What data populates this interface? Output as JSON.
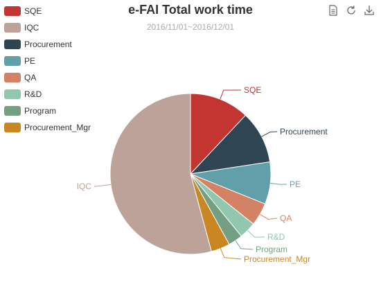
{
  "chart_data": {
    "type": "pie",
    "title": "e-FAI Total work time",
    "subtitle": "2016/11/01~2016/12/01",
    "legend_position": "top-left",
    "slices": [
      {
        "name": "SQE",
        "value": 12.0,
        "color": "#c23531"
      },
      {
        "name": "Procurement",
        "value": 10.6,
        "color": "#2f4554"
      },
      {
        "name": "PE",
        "value": 8.5,
        "color": "#61a0a8"
      },
      {
        "name": "QA",
        "value": 4.6,
        "color": "#d48265"
      },
      {
        "name": "R&D",
        "value": 3.4,
        "color": "#91c7ae"
      },
      {
        "name": "Program",
        "value": 2.9,
        "color": "#749f83"
      },
      {
        "name": "Procurement_Mgr",
        "value": 3.8,
        "color": "#ca8622"
      },
      {
        "name": "IQC",
        "value": 54.2,
        "color": "#bda29a"
      }
    ]
  },
  "legend": {
    "items": [
      {
        "name": "SQE",
        "color": "#c23531"
      },
      {
        "name": "IQC",
        "color": "#bda29a"
      },
      {
        "name": "Procurement",
        "color": "#2f4554"
      },
      {
        "name": "PE",
        "color": "#61a0a8"
      },
      {
        "name": "QA",
        "color": "#d48265"
      },
      {
        "name": "R&D",
        "color": "#91c7ae"
      },
      {
        "name": "Program",
        "color": "#749f83"
      },
      {
        "name": "Procurement_Mgr",
        "color": "#ca8622"
      }
    ]
  },
  "toolbox": {
    "icons": [
      "data-view-icon",
      "refresh-icon",
      "download-icon"
    ]
  }
}
